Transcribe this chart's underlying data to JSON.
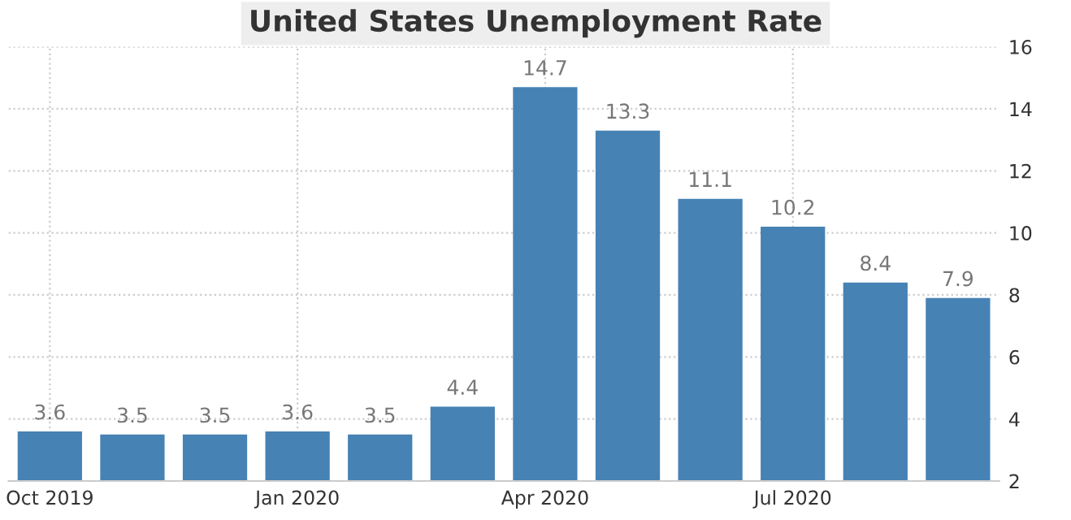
{
  "chart_data": {
    "type": "bar",
    "title": "United States Unemployment Rate",
    "categories": [
      "Oct 2019",
      null,
      null,
      "Jan 2020",
      null,
      null,
      "Apr 2020",
      null,
      null,
      "Jul 2020",
      null,
      null
    ],
    "values": [
      3.6,
      3.5,
      3.5,
      3.6,
      3.5,
      4.4,
      14.7,
      13.3,
      11.1,
      10.2,
      8.4,
      7.9
    ],
    "color": "#4682b4",
    "ylim": [
      2,
      16
    ],
    "yticks": [
      2,
      4,
      6,
      8,
      10,
      12,
      14,
      16
    ],
    "grid": true,
    "data_labels": true
  }
}
